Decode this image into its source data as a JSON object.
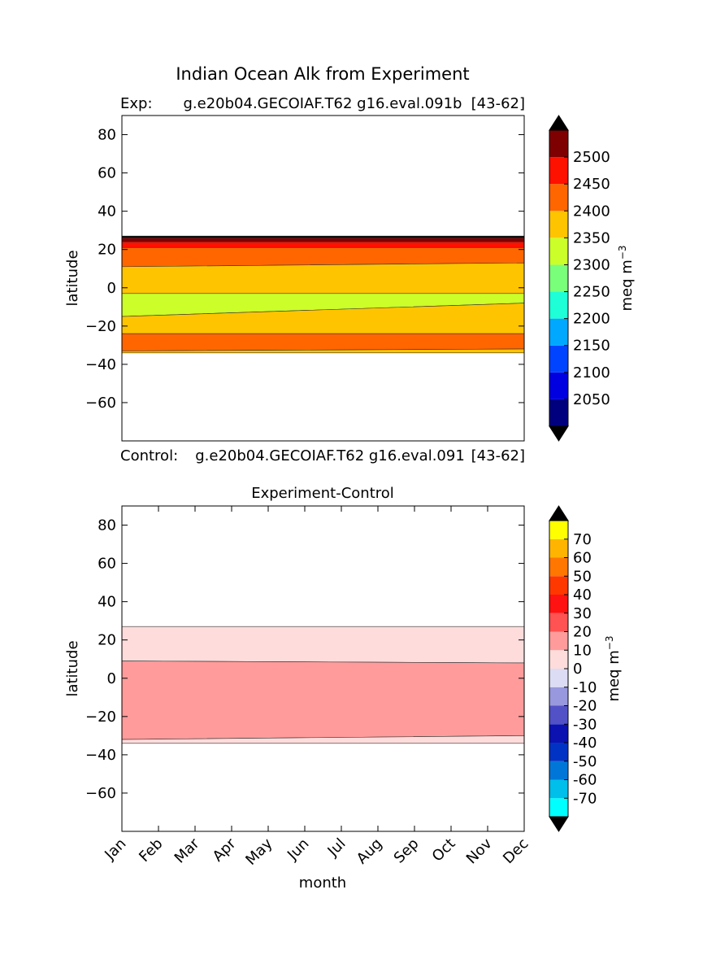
{
  "figure_title": "Indian Ocean Alk from Experiment",
  "chart_data": [
    {
      "type": "heatmap",
      "panel": "top",
      "title_left": "Exp:",
      "title_center": "g.e20b04.GECOIAF.T62 g16.eval.091b",
      "title_right": "[43-62]",
      "xlabel": "",
      "ylabel": "latitude",
      "xlim": [
        0,
        11
      ],
      "ylim": [
        -80,
        90
      ],
      "yticks": [
        80,
        60,
        40,
        20,
        0,
        -20,
        -40,
        -60
      ],
      "colorbar": {
        "label": "meq m",
        "label_exp": "−3",
        "levels": [
          2000,
          2050,
          2100,
          2150,
          2200,
          2250,
          2300,
          2350,
          2400,
          2450,
          2500,
          2550
        ],
        "tick_labels": [
          "2050",
          "2100",
          "2150",
          "2200",
          "2250",
          "2300",
          "2350",
          "2400",
          "2450",
          "2500"
        ],
        "colors": [
          "#00007f",
          "#0000e0",
          "#0044ff",
          "#00a8ff",
          "#1effd8",
          "#7aff7a",
          "#ccff2a",
          "#ffc400",
          "#ff6600",
          "#ff1100",
          "#7f0000"
        ],
        "under_color": "#000000",
        "over_color": "#000000"
      },
      "bands": [
        {
          "y": [
            [
              26,
              26
            ],
            [
              27,
              27
            ]
          ],
          "color": "#000000"
        },
        {
          "y": [
            [
              24,
              24
            ],
            [
              26,
              26
            ]
          ],
          "color": "#7f0000"
        },
        {
          "y": [
            [
              21,
              21
            ],
            [
              24,
              24
            ]
          ],
          "color": "#ff1100"
        },
        {
          "y": [
            [
              11,
              13
            ],
            [
              21,
              21
            ]
          ],
          "color": "#ff6600"
        },
        {
          "y": [
            [
              -3,
              -3
            ],
            [
              11,
              13
            ]
          ],
          "color": "#ffc400"
        },
        {
          "y": [
            [
              -15,
              -8
            ],
            [
              -3,
              -3
            ]
          ],
          "color": "#ccff2a"
        },
        {
          "y": [
            [
              -24,
              -24
            ],
            [
              -15,
              -8
            ]
          ],
          "color": "#ffc400"
        },
        {
          "y": [
            [
              -33,
              -32
            ],
            [
              -24,
              -24
            ]
          ],
          "color": "#ff6600"
        },
        {
          "y": [
            [
              -34,
              -34
            ],
            [
              -33,
              -32
            ]
          ],
          "color": "#ffc400"
        }
      ]
    },
    {
      "type": "heatmap",
      "panel": "bottom",
      "title_left": "Control:",
      "title_center": "g.e20b04.GECOIAF.T62 g16.eval.091",
      "title_right": "[43-62]",
      "subtitle": "Experiment-Control",
      "xlabel": "month",
      "ylabel": "latitude",
      "xlim": [
        0,
        11
      ],
      "ylim": [
        -80,
        90
      ],
      "xticks": [
        "Jan",
        "Feb",
        "Mar",
        "Apr",
        "May",
        "Jun",
        "Jul",
        "Aug",
        "Sep",
        "Oct",
        "Nov",
        "Dec"
      ],
      "yticks": [
        80,
        60,
        40,
        20,
        0,
        -20,
        -40,
        -60
      ],
      "colorbar": {
        "label": "meq m",
        "label_exp": "−3",
        "levels": [
          -80,
          -70,
          -60,
          -50,
          -40,
          -30,
          -20,
          -10,
          0,
          10,
          20,
          30,
          40,
          50,
          60,
          70,
          80
        ],
        "tick_labels": [
          "-70",
          "-60",
          "-50",
          "-40",
          "-30",
          "-20",
          "-10",
          "0",
          "10",
          "20",
          "30",
          "40",
          "50",
          "60",
          "70"
        ],
        "colors": [
          "#00ffff",
          "#00bfea",
          "#0077d8",
          "#0033c4",
          "#0b12b0",
          "#5252c6",
          "#9898de",
          "#dcdcf5",
          "#ffdcdc",
          "#ff9b9b",
          "#ff5252",
          "#ff1212",
          "#ff3800",
          "#ff7700",
          "#ffb500",
          "#ffff00"
        ],
        "under_color": "#000000",
        "over_color": "#000000"
      },
      "bands": [
        {
          "y": [
            [
              9,
              8
            ],
            [
              27,
              27
            ]
          ],
          "color": "#ffdcdc"
        },
        {
          "y": [
            [
              -32,
              -30
            ],
            [
              9,
              8
            ]
          ],
          "color": "#ff9b9b"
        },
        {
          "y": [
            [
              -34,
              -34
            ],
            [
              -32,
              -30
            ]
          ],
          "color": "#ffdcdc"
        }
      ]
    }
  ]
}
